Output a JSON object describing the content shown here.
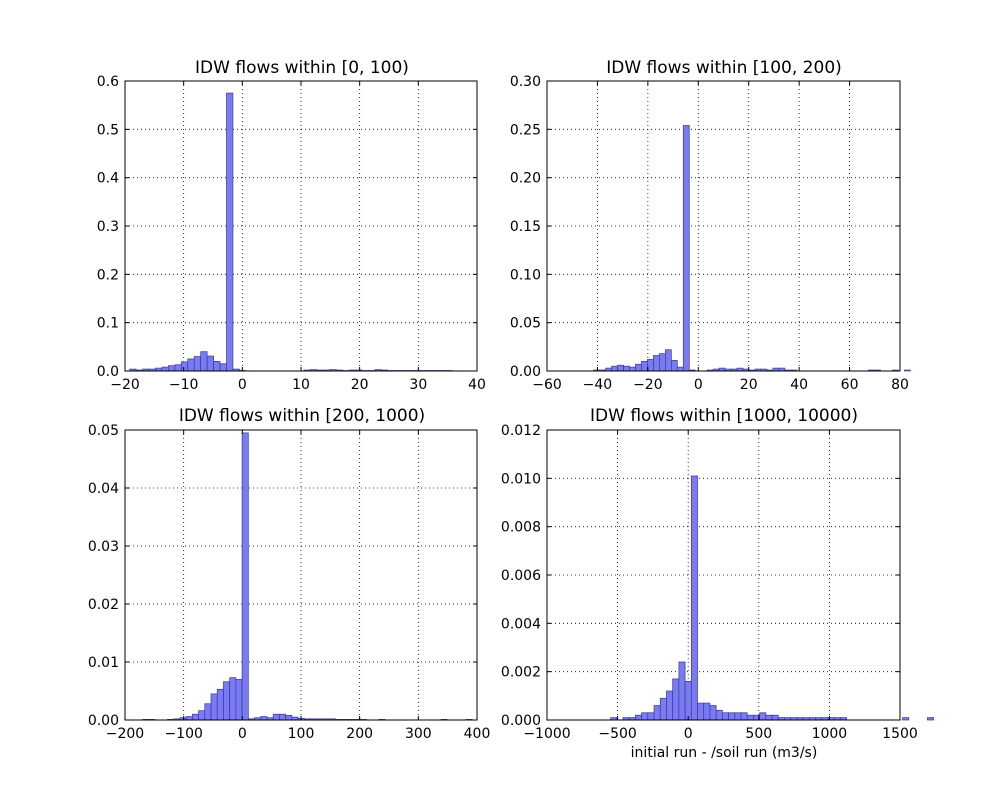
{
  "chart_data": [
    {
      "type": "bar",
      "title": "IDW flows within [0, 100)",
      "xlabel": "",
      "ylabel": "",
      "xlim": [
        -20,
        40
      ],
      "ylim": [
        0,
        0.6
      ],
      "xticks": [
        -20,
        -10,
        0,
        10,
        20,
        30,
        40
      ],
      "yticks": [
        0.0,
        0.1,
        0.2,
        0.3,
        0.4,
        0.5,
        0.6
      ],
      "xtick_labels": [
        "−20",
        "−10",
        "0",
        "10",
        "20",
        "30",
        "40"
      ],
      "ytick_labels": [
        "0.0",
        "0.1",
        "0.2",
        "0.3",
        "0.4",
        "0.5",
        "0.6"
      ],
      "grid": true,
      "bin_start": -19.2,
      "bin_width": 1.1,
      "values": [
        0.004,
        0.002,
        0.004,
        0.004,
        0.006,
        0.008,
        0.011,
        0.013,
        0.019,
        0.025,
        0.03,
        0.04,
        0.031,
        0.02,
        0.015,
        0.575,
        0.004,
        0.001,
        0,
        0,
        0,
        0,
        0,
        0,
        0,
        0,
        0,
        0.002,
        0.003,
        0.002,
        0.002,
        0.003,
        0.002,
        0.001,
        0.002,
        0.002,
        0.001,
        0.001,
        0.003,
        0.002,
        0.001,
        0.001,
        0.001,
        0.001,
        0.001,
        0.001,
        0.001,
        0.001,
        0.001,
        0.001
      ]
    },
    {
      "type": "bar",
      "title": "IDW flows within [100, 200)",
      "xlabel": "",
      "ylabel": "",
      "xlim": [
        -60,
        80
      ],
      "ylim": [
        0,
        0.3
      ],
      "xticks": [
        -60,
        -40,
        -20,
        0,
        20,
        40,
        60,
        80
      ],
      "yticks": [
        0.0,
        0.05,
        0.1,
        0.15,
        0.2,
        0.25,
        0.3
      ],
      "xtick_labels": [
        "−60",
        "−40",
        "−20",
        "0",
        "20",
        "40",
        "60",
        "80"
      ],
      "ytick_labels": [
        "0.00",
        "0.05",
        "0.10",
        "0.15",
        "0.20",
        "0.25",
        "0.30"
      ],
      "grid": true,
      "bin_start": -41.5,
      "bin_width": 2.37,
      "values": [
        0.001,
        0.001,
        0.003,
        0.005,
        0.006,
        0.005,
        0.004,
        0.007,
        0.01,
        0.012,
        0.016,
        0.018,
        0.022,
        0.011,
        0.004,
        0.254,
        0.001,
        0,
        0,
        0.001,
        0.002,
        0.003,
        0.002,
        0.002,
        0.003,
        0.002,
        0.001,
        0.002,
        0.002,
        0.001,
        0.003,
        0.003,
        0.001,
        0.001,
        0,
        0,
        0,
        0,
        0,
        0,
        0,
        0,
        0,
        0,
        0,
        0,
        0.001,
        0.001,
        0,
        0,
        0.001,
        0,
        0.001
      ]
    },
    {
      "type": "bar",
      "title": "IDW flows within [200, 1000)",
      "xlabel": "",
      "ylabel": "",
      "xlim": [
        -200,
        400
      ],
      "ylim": [
        0,
        0.05
      ],
      "xticks": [
        -200,
        -100,
        0,
        100,
        200,
        300,
        400
      ],
      "yticks": [
        0.0,
        0.01,
        0.02,
        0.03,
        0.04,
        0.05
      ],
      "xtick_labels": [
        "−200",
        "−100",
        "0",
        "100",
        "200",
        "300",
        "400"
      ],
      "ytick_labels": [
        "0.00",
        "0.01",
        "0.02",
        "0.03",
        "0.04",
        "0.05"
      ],
      "grid": true,
      "bin_start": -170,
      "bin_width": 10.6,
      "values": [
        0.0001,
        0.0001,
        0,
        0,
        0.0001,
        0.0002,
        0.0004,
        0.0006,
        0.001,
        0.0016,
        0.0028,
        0.0045,
        0.0053,
        0.0066,
        0.0073,
        0.007,
        0.0495,
        0.0002,
        0.0004,
        0.0006,
        0.0004,
        0.001,
        0.001,
        0.0008,
        0.0005,
        0.0003,
        0.0002,
        0.0002,
        0.0002,
        0.0002,
        0.0002,
        0.0001,
        0.0001,
        0.0001,
        0.0001,
        0.0001,
        0,
        0,
        0.0001,
        0,
        0,
        0,
        0,
        0,
        0,
        0,
        0,
        0,
        0.0001,
        0,
        0,
        0,
        0.0001
      ]
    },
    {
      "type": "bar",
      "title": "IDW flows within [1000, 10000)",
      "xlabel": "initial run - /soil run (m3/s)",
      "ylabel": "",
      "xlim": [
        -1000,
        1500
      ],
      "ylim": [
        0,
        0.012
      ],
      "xticks": [
        -1000,
        -500,
        0,
        500,
        1000,
        1500
      ],
      "yticks": [
        0.0,
        0.002,
        0.004,
        0.006,
        0.008,
        0.01,
        0.012
      ],
      "xtick_labels": [
        "−1000",
        "−500",
        "0",
        "500",
        "1000",
        "1500"
      ],
      "ytick_labels": [
        "0.000",
        "0.002",
        "0.004",
        "0.006",
        "0.008",
        "0.010",
        "0.012"
      ],
      "grid": true,
      "bin_start": -550,
      "bin_width": 44,
      "values": [
        0.0001,
        0,
        0.0001,
        0.0001,
        0.0002,
        0.0003,
        0.0003,
        0.0006,
        0.0009,
        0.0012,
        0.0017,
        0.0024,
        0.0016,
        0.0101,
        0.0007,
        0.0007,
        0.0006,
        0.0004,
        0.0003,
        0.0003,
        0.0003,
        0.0003,
        0.0002,
        0.0002,
        0.0003,
        0.0002,
        0.0002,
        0.0001,
        0.0001,
        0.0001,
        0.0001,
        0.0001,
        0.0001,
        0.0001,
        0.0001,
        0.0001,
        0.0001,
        0.0001,
        0,
        0,
        0,
        0,
        0,
        0,
        0,
        0,
        0,
        0.0001,
        0,
        0,
        0,
        0.0001
      ]
    }
  ]
}
